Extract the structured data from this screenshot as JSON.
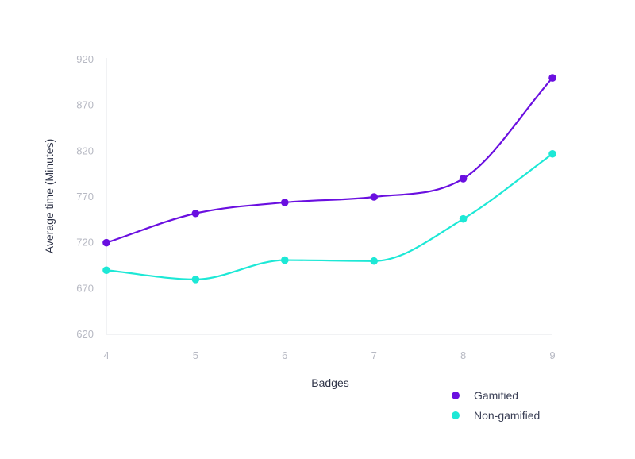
{
  "chart_data": {
    "type": "line",
    "title": "",
    "xlabel": "Badges",
    "ylabel": "Average time (Minutes)",
    "x": [
      4,
      5,
      6,
      7,
      8,
      9
    ],
    "x_tick_labels": [
      "4",
      "5",
      "6",
      "7",
      "8",
      "9"
    ],
    "ylim": [
      620,
      920
    ],
    "y_ticks": [
      620,
      670,
      720,
      770,
      820,
      870,
      920
    ],
    "y_tick_labels": [
      "620",
      "670",
      "720",
      "770",
      "820",
      "870",
      "920"
    ],
    "grid": false,
    "smooth": true,
    "legend_position": "bottom-right",
    "series": [
      {
        "name": "Gamified",
        "color": "#6a0fe0",
        "values": [
          720,
          752,
          764,
          770,
          790,
          900
        ]
      },
      {
        "name": "Non-gamified",
        "color": "#1de8d6",
        "values": [
          690,
          680,
          701,
          700,
          746,
          817
        ]
      }
    ],
    "axis_color": "#e3e4ea"
  }
}
